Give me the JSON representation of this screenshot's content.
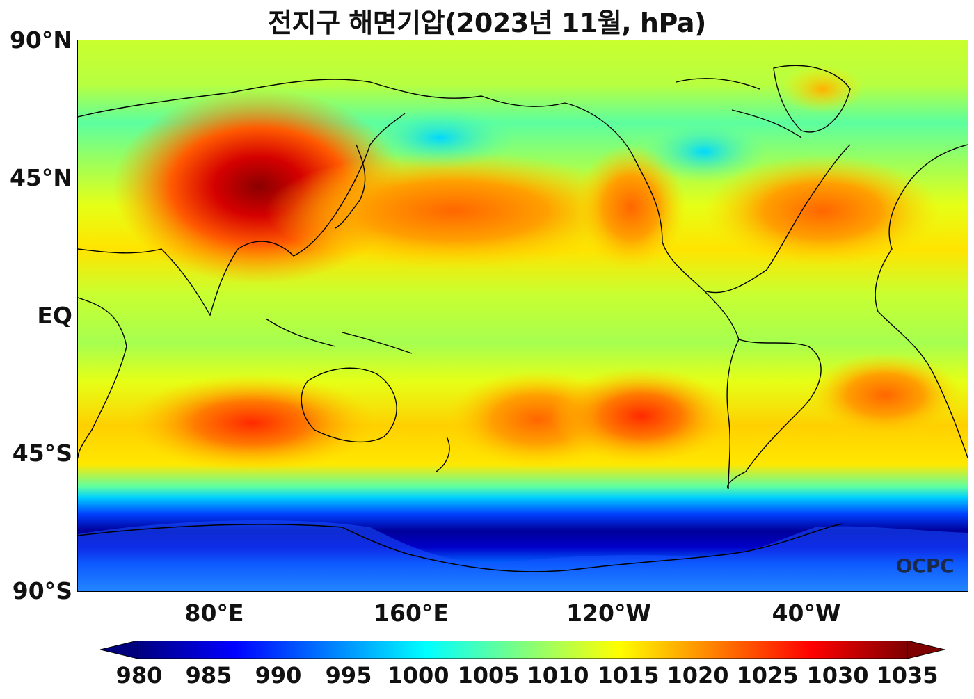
{
  "title": "전지구 해면기압(2023년 11월, hPa)",
  "watermark": "OCPC",
  "lat_labels": [
    "90°N",
    "45°N",
    "EQ",
    "45°S",
    "90°S"
  ],
  "lon_labels": [
    "80°E",
    "160°E",
    "120°W",
    "40°W"
  ],
  "colorbar": {
    "unit": "hPa",
    "ticks": [
      "980",
      "985",
      "990",
      "995",
      "1000",
      "1005",
      "1010",
      "1015",
      "1020",
      "1025",
      "1030",
      "1035"
    ],
    "colors": [
      "#00007f",
      "#0000ff",
      "#007fff",
      "#00ffff",
      "#7fff7f",
      "#ffff00",
      "#ff7f00",
      "#ff0000",
      "#7f0000"
    ]
  },
  "icons": {
    "watermark_logo": "ocpc-logo-icon"
  }
}
